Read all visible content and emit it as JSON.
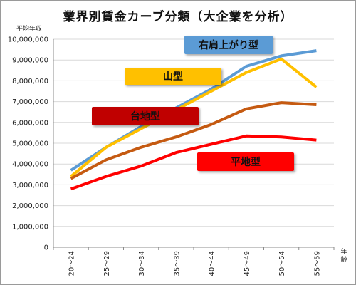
{
  "chart_data": {
    "type": "line",
    "title": "業界別賃金カーブ分類（大企業を分析）",
    "ylabel": "平均年収",
    "xlabel": "年齢",
    "categories": [
      "20～24",
      "25～29",
      "30～34",
      "35～39",
      "40～44",
      "45～49",
      "50～54",
      "55～59"
    ],
    "ylim": [
      0,
      10000000
    ],
    "yticks": [
      0,
      1000000,
      2000000,
      3000000,
      4000000,
      5000000,
      6000000,
      7000000,
      8000000,
      9000000,
      10000000
    ],
    "ytick_labels": [
      "0",
      "1,000,000",
      "2,000,000",
      "3,000,000",
      "4,000,000",
      "5,000,000",
      "6,000,000",
      "7,000,000",
      "8,000,000",
      "9,000,000",
      "10,000,000"
    ],
    "grid": true,
    "legend_style": "callout boxes",
    "series": [
      {
        "name": "右肩上がり型",
        "color": "#5b9bd5",
        "values": [
          3700000,
          4800000,
          5800000,
          6700000,
          7600000,
          8700000,
          9200000,
          9450000
        ]
      },
      {
        "name": "山型",
        "color": "#ffc000",
        "values": [
          3400000,
          4800000,
          5700000,
          6600000,
          7500000,
          8400000,
          9050000,
          7700000
        ]
      },
      {
        "name": "台地型",
        "color": "#c55a11",
        "values": [
          3300000,
          4200000,
          4800000,
          5300000,
          5900000,
          6650000,
          6950000,
          6850000
        ]
      },
      {
        "name": "平地型",
        "color": "#ff0000",
        "values": [
          2800000,
          3400000,
          3900000,
          4550000,
          4950000,
          5350000,
          5300000,
          5150000
        ]
      }
    ]
  }
}
